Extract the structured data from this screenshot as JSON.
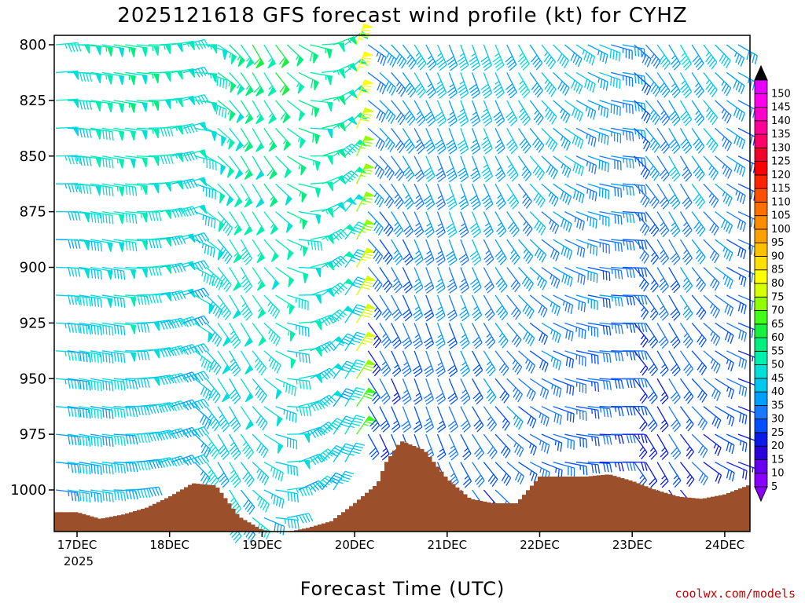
{
  "chart_data": {
    "type": "wind-barb-profile",
    "title": "2025121618 GFS forecast wind profile (kt) for CYHZ",
    "xlabel": "Forecast Time (UTC)",
    "ylabel": "",
    "credit": "coolwx.com/models",
    "y_axis": {
      "ticks": [
        "800",
        "825",
        "850",
        "875",
        "900",
        "925",
        "950",
        "975",
        "1000"
      ],
      "range": [
        797,
        1020
      ],
      "inverted": true
    },
    "x_axis": {
      "ticks": [
        "17DEC",
        "18DEC",
        "19DEC",
        "20DEC",
        "21DEC",
        "22DEC",
        "23DEC",
        "24DEC"
      ],
      "year_label": "2025",
      "range_hours": [
        0,
        180
      ]
    },
    "levels_hpa": [
      800,
      812.5,
      825,
      837.5,
      850,
      862.5,
      875,
      887.5,
      900,
      912.5,
      925,
      937.5,
      950,
      962.5,
      975,
      987.5,
      1000,
      1012.5
    ],
    "barb_interval_hours": 3,
    "colorbar": {
      "labels": [
        "5",
        "10",
        "15",
        "20",
        "25",
        "30",
        "35",
        "40",
        "45",
        "50",
        "55",
        "60",
        "65",
        "70",
        "75",
        "80",
        "85",
        "90",
        "95",
        "100",
        "105",
        "110",
        "115",
        "120",
        "125",
        "130",
        "135",
        "140",
        "145",
        "150"
      ],
      "colors": [
        "#8a00ff",
        "#6600ee",
        "#2a00dd",
        "#0a1ae8",
        "#0050ff",
        "#1878ff",
        "#00a0ff",
        "#00c8ee",
        "#00e0d8",
        "#00f0b0",
        "#00f080",
        "#18f040",
        "#40ff18",
        "#90ff00",
        "#d8ff00",
        "#ffff00",
        "#ffe000",
        "#ffc000",
        "#ffa000",
        "#ff8c00",
        "#ff7000",
        "#ff5000",
        "#ff2400",
        "#ff0000",
        "#f0002a",
        "#ff0066",
        "#ff0099",
        "#ff00cc",
        "#ff00ee",
        "#e800ff"
      ]
    },
    "wind_speed_kt_by_time_blocks": [
      {
        "hours": [
          0,
          36
        ],
        "speed_range_kt": [
          30,
          60
        ],
        "direction_deg_range": [
          250,
          280
        ]
      },
      {
        "hours": [
          36,
          78
        ],
        "speed_range_kt": [
          30,
          65
        ],
        "direction_deg_range": [
          210,
          330
        ]
      },
      {
        "hours": [
          78,
          81
        ],
        "speed_range_kt": [
          60,
          95
        ],
        "direction_deg_range": [
          180,
          220
        ]
      },
      {
        "hours": [
          81,
          150
        ],
        "speed_range_kt": [
          15,
          50
        ],
        "direction_deg_range": [
          270,
          340
        ]
      },
      {
        "hours": [
          150,
          180
        ],
        "speed_range_kt": [
          10,
          50
        ],
        "direction_deg_range": [
          290,
          330
        ]
      }
    ],
    "surface_pressure_hpa": {
      "hours": [
        0,
        6,
        12,
        18,
        24,
        30,
        36,
        42,
        48,
        54,
        60,
        66,
        72,
        78,
        80,
        84,
        90,
        96,
        102,
        108,
        114,
        120,
        126,
        132,
        138,
        144,
        150,
        156,
        162,
        168,
        174,
        180
      ],
      "values": [
        1010,
        1013,
        1011,
        1008,
        1003,
        997,
        998,
        1012,
        1018,
        1019,
        1017,
        1014,
        1006,
        997,
        988,
        978,
        982,
        995,
        1004,
        1006,
        1006,
        994,
        994,
        994,
        993,
        996,
        1000,
        1003,
        1004,
        1002,
        998,
        993
      ]
    },
    "ground_fill_color": "#9b4f2b"
  }
}
